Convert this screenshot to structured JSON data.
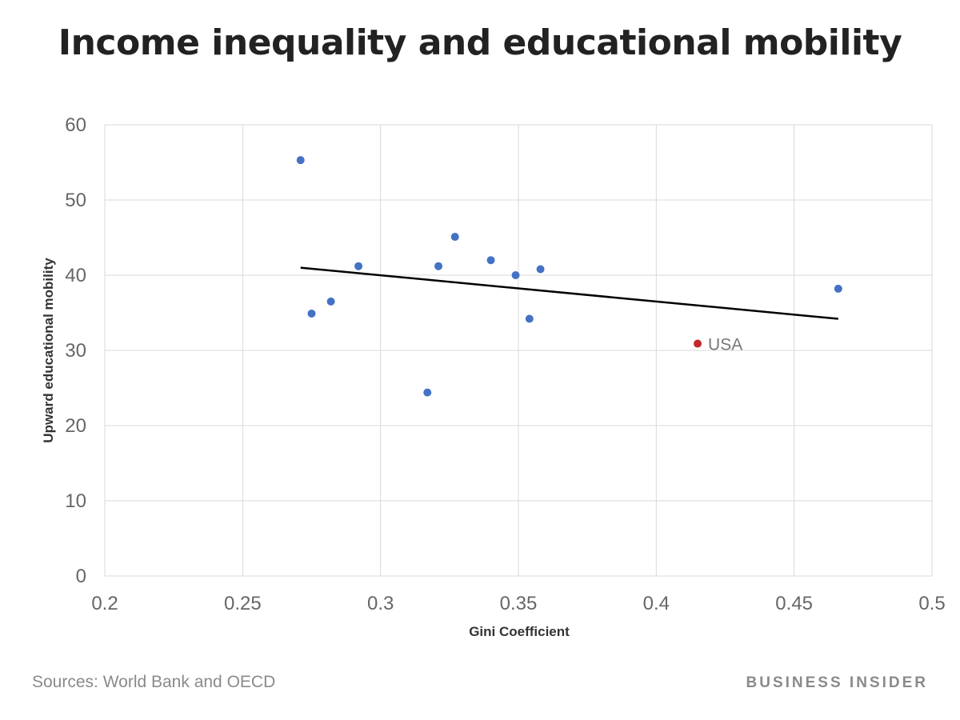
{
  "footer": {
    "source": "Sources: World Bank and OECD",
    "brand": "BUSINESS INSIDER"
  },
  "colors": {
    "point": "#4472c4",
    "highlight": "#c0282d",
    "trendline": "#000000",
    "grid": "#d9d9d9",
    "axis_text": "#666666",
    "title_text": "#222222"
  },
  "chart_data": {
    "type": "scatter",
    "title": "Income inequality and educational mobility",
    "xlabel": "Gini Coefficient",
    "ylabel": "Upward educational mobility",
    "xlim": [
      0.2,
      0.5
    ],
    "ylim": [
      0,
      60
    ],
    "x_ticks": [
      "0.2",
      "0.25",
      "0.3",
      "0.35",
      "0.4",
      "0.45",
      "0.5"
    ],
    "y_ticks": [
      "0",
      "10",
      "20",
      "30",
      "40",
      "50",
      "60"
    ],
    "grid": true,
    "legend": "none",
    "points": [
      {
        "x": 0.271,
        "y": 55.3
      },
      {
        "x": 0.275,
        "y": 34.9
      },
      {
        "x": 0.282,
        "y": 36.5
      },
      {
        "x": 0.292,
        "y": 41.2
      },
      {
        "x": 0.317,
        "y": 24.4
      },
      {
        "x": 0.321,
        "y": 41.2
      },
      {
        "x": 0.327,
        "y": 45.1
      },
      {
        "x": 0.34,
        "y": 42.0
      },
      {
        "x": 0.349,
        "y": 40.0
      },
      {
        "x": 0.354,
        "y": 34.2
      },
      {
        "x": 0.358,
        "y": 40.8
      },
      {
        "x": 0.466,
        "y": 38.2
      },
      {
        "x": 0.415,
        "y": 30.9,
        "label": "USA",
        "highlight": true
      }
    ],
    "trendline": {
      "x": [
        0.271,
        0.466
      ],
      "y": [
        41.0,
        34.2
      ]
    }
  }
}
